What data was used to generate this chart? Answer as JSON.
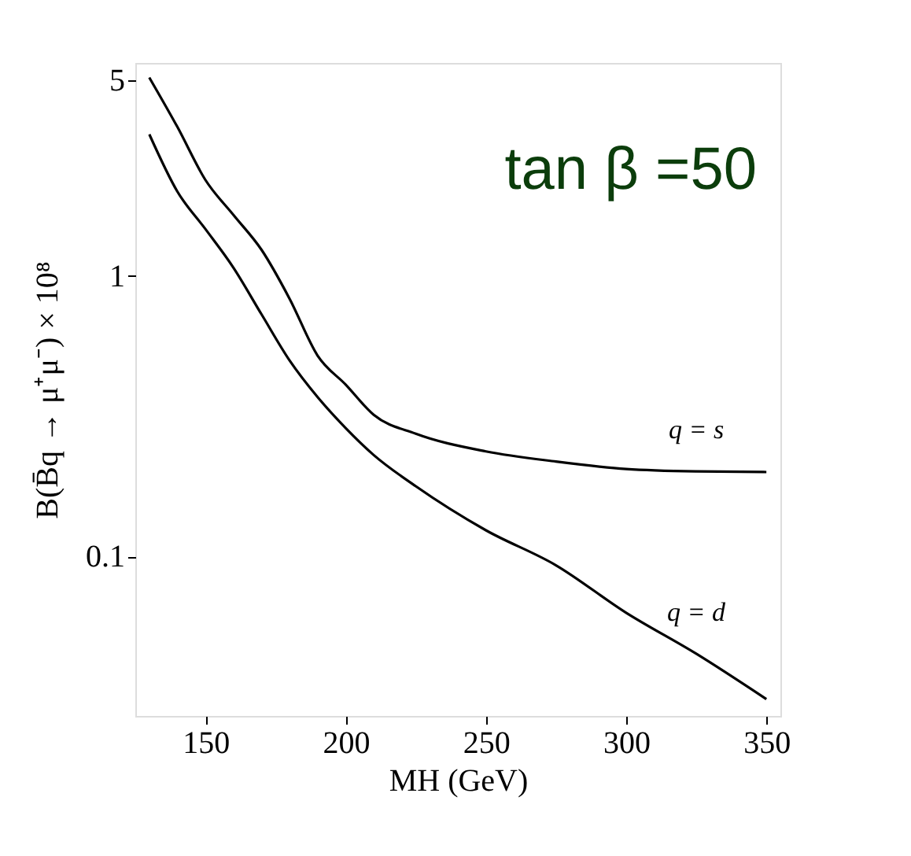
{
  "chart_data": {
    "type": "line",
    "xlabel": "MH (GeV)",
    "ylabel": "B(B̄q → μ⁺μ⁻) × 10⁸",
    "x": [
      130,
      140,
      150,
      160,
      170,
      180,
      190,
      200,
      210,
      225,
      250,
      275,
      300,
      325,
      350
    ],
    "series": [
      {
        "name": "q = s",
        "color": "#000000",
        "values": [
          5.1,
          3.4,
          2.2,
          1.65,
          1.24,
          0.83,
          0.52,
          0.41,
          0.32,
          0.274,
          0.237,
          0.218,
          0.205,
          0.201,
          0.2
        ]
      },
      {
        "name": "q = d",
        "color": "#000000",
        "values": [
          3.2,
          2.0,
          1.47,
          1.07,
          0.73,
          0.5,
          0.37,
          0.287,
          0.23,
          0.178,
          0.124,
          0.093,
          0.063,
          0.045,
          0.031
        ]
      }
    ],
    "annotations": [
      "tan β =50"
    ],
    "log": true,
    "xlim": [
      125,
      355
    ],
    "ylim": [
      0.027,
      5.75
    ],
    "xticks": [
      150,
      200,
      250,
      300,
      350
    ],
    "yticks": [
      0.1,
      1,
      5
    ],
    "grid": false,
    "legend": false,
    "marker": "none",
    "line_style": "solid"
  }
}
